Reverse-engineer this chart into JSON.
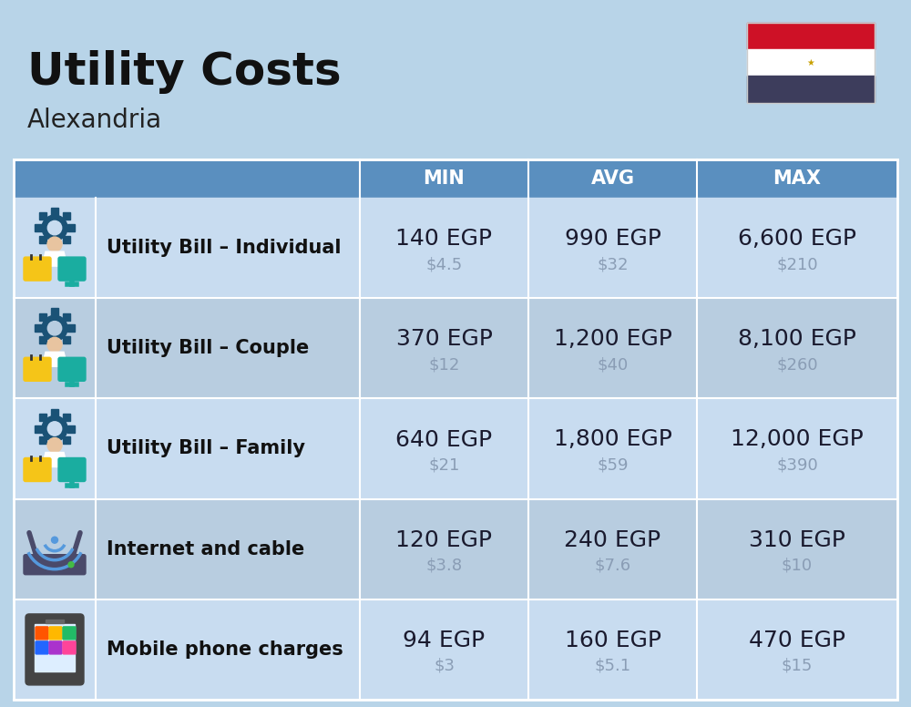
{
  "title": "Utility Costs",
  "subtitle": "Alexandria",
  "bg_color": "#B8D4E8",
  "header_bg_color": "#5A8FBF",
  "header_text_color": "#FFFFFF",
  "row_bg_odd": "#C8DCF0",
  "row_bg_even": "#B8CDE0",
  "divider_color": "#FFFFFF",
  "header_cols": [
    "MIN",
    "AVG",
    "MAX"
  ],
  "rows": [
    {
      "label": "Utility Bill – Individual",
      "min_egp": "140 EGP",
      "min_usd": "$4.5",
      "avg_egp": "990 EGP",
      "avg_usd": "$32",
      "max_egp": "6,600 EGP",
      "max_usd": "$210"
    },
    {
      "label": "Utility Bill – Couple",
      "min_egp": "370 EGP",
      "min_usd": "$12",
      "avg_egp": "1,200 EGP",
      "avg_usd": "$40",
      "max_egp": "8,100 EGP",
      "max_usd": "$260"
    },
    {
      "label": "Utility Bill – Family",
      "min_egp": "640 EGP",
      "min_usd": "$21",
      "avg_egp": "1,800 EGP",
      "avg_usd": "$59",
      "max_egp": "12,000 EGP",
      "max_usd": "$390"
    },
    {
      "label": "Internet and cable",
      "min_egp": "120 EGP",
      "min_usd": "$3.8",
      "avg_egp": "240 EGP",
      "avg_usd": "$7.6",
      "max_egp": "310 EGP",
      "max_usd": "$10"
    },
    {
      "label": "Mobile phone charges",
      "min_egp": "94 EGP",
      "min_usd": "$3",
      "avg_egp": "160 EGP",
      "avg_usd": "$5.1",
      "max_egp": "470 EGP",
      "max_usd": "$15"
    }
  ],
  "title_fontsize": 36,
  "subtitle_fontsize": 20,
  "header_fontsize": 15,
  "label_fontsize": 15,
  "value_fontsize": 18,
  "usd_fontsize": 13,
  "usd_color": "#8A9DB5",
  "flag_red": "#CE1126",
  "flag_white": "#FFFFFF",
  "flag_black": "#3D3D5C",
  "flag_gold": "#C8A000"
}
